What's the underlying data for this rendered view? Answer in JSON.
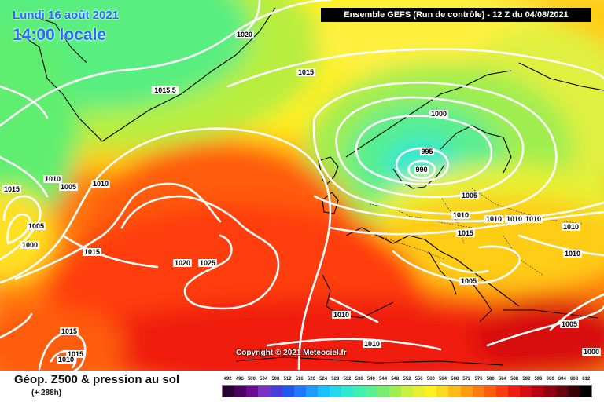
{
  "header": {
    "date": "Lundi 16 août 2021",
    "local_time": "14:00 locale",
    "run_info": "Ensemble GEFS  (Run de contrôle)  -  12 Z du 04/08/2021"
  },
  "copyright": "Copyright © 2021 Meteociel.fr",
  "footer": {
    "parameter": "Géop. Z500 & pression au sol",
    "forecast_offset": "(+ 288h)"
  },
  "scale": {
    "labels": [
      "492",
      "496",
      "500",
      "504",
      "508",
      "512",
      "516",
      "520",
      "524",
      "528",
      "532",
      "536",
      "540",
      "544",
      "548",
      "552",
      "556",
      "560",
      "564",
      "568",
      "572",
      "576",
      "580",
      "584",
      "588",
      "592",
      "596",
      "600",
      "604",
      "608",
      "612"
    ],
    "colors": [
      "#2a0030",
      "#4a0060",
      "#6a0a90",
      "#7a30c0",
      "#4a3cd8",
      "#1f58f0",
      "#1f78ff",
      "#1c9cff",
      "#1ac0ff",
      "#22d8f0",
      "#30e8d0",
      "#40f0b0",
      "#58f090",
      "#78ee70",
      "#a0ee50",
      "#c8f040",
      "#e6f030",
      "#fff020",
      "#ffd820",
      "#ffbc18",
      "#ff9c10",
      "#ff7c10",
      "#ff5c10",
      "#ff3c10",
      "#f01c10",
      "#d80c10",
      "#b80010",
      "#900010",
      "#680010",
      "#3a0008",
      "#000000"
    ]
  },
  "pressure_labels": [
    {
      "name": "pressure-label-1020-north",
      "text": "1020"
    },
    {
      "name": "pressure-label-1015-north-atlantic",
      "text": "1015"
    },
    {
      "name": "pressure-label-1015-5-greenland",
      "text": "1015.5"
    },
    {
      "name": "pressure-label-1000-scandinavia",
      "text": "1000"
    },
    {
      "name": "pressure-label-995-low",
      "text": "995"
    },
    {
      "name": "pressure-label-990-low",
      "text": "990"
    },
    {
      "name": "pressure-label-1005-baltic",
      "text": "1005"
    },
    {
      "name": "pressure-label-1010-north-sea",
      "text": "1010"
    },
    {
      "name": "pressure-label-1010-poland",
      "text": "1010"
    },
    {
      "name": "pressure-label-1010-ukraine",
      "text": "1010"
    },
    {
      "name": "pressure-label-1010-russia",
      "text": "1010"
    },
    {
      "name": "pressure-label-1010-east",
      "text": "1010"
    },
    {
      "name": "pressure-label-1015-alps",
      "text": "1015"
    },
    {
      "name": "pressure-label-1005-balkans",
      "text": "1005"
    },
    {
      "name": "pressure-label-1010-far-east",
      "text": "1010"
    },
    {
      "name": "pressure-label-1005-turkey",
      "text": "1005"
    },
    {
      "name": "pressure-label-1000-middle-east",
      "text": "1000"
    },
    {
      "name": "pressure-label-1010-iberia",
      "text": "1010"
    },
    {
      "name": "pressure-label-1010-north-africa",
      "text": "1010"
    },
    {
      "name": "pressure-label-1015-west-edge",
      "text": "1015"
    },
    {
      "name": "pressure-label-1010-west",
      "text": "1010"
    },
    {
      "name": "pressure-label-1005-west",
      "text": "1005"
    },
    {
      "name": "pressure-label-1010-mid-atlantic",
      "text": "1010"
    },
    {
      "name": "pressure-label-1005-sw-low",
      "text": "1005"
    },
    {
      "name": "pressure-label-1000-sw-low",
      "text": "1000"
    },
    {
      "name": "pressure-label-1015-mid",
      "text": "1015"
    },
    {
      "name": "pressure-label-1020-azores",
      "text": "1020"
    },
    {
      "name": "pressure-label-1025-azores",
      "text": "1025"
    },
    {
      "name": "pressure-label-1015-south",
      "text": "1015"
    },
    {
      "name": "pressure-label-1015-south-low",
      "text": "1015"
    },
    {
      "name": "pressure-label-1010-south-low",
      "text": "1010"
    }
  ]
}
